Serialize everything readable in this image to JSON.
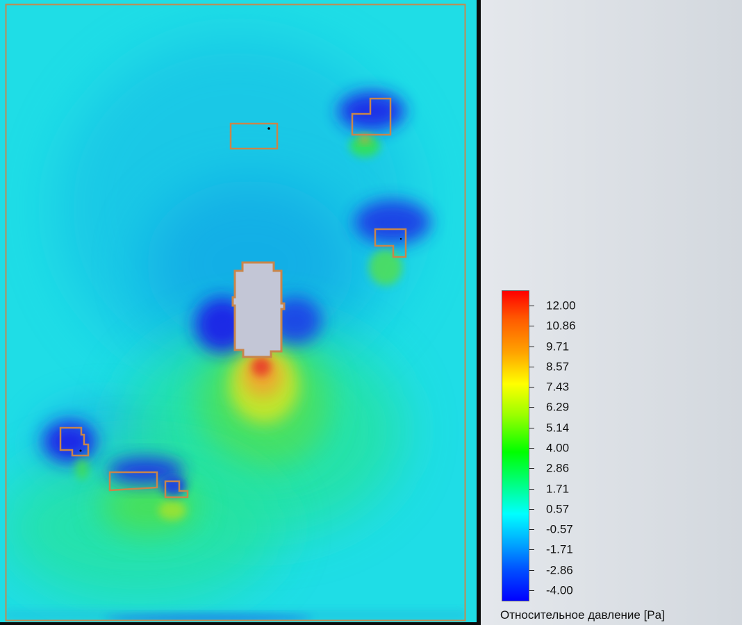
{
  "legend": {
    "title": "Относительное давление [Pa]",
    "ticks": [
      "12.00",
      "10.86",
      "9.71",
      "8.57",
      "7.43",
      "6.29",
      "5.14",
      "4.00",
      "2.86",
      "1.71",
      "0.57",
      "-0.57",
      "-1.71",
      "-2.86",
      "-4.00"
    ],
    "min": -4.0,
    "max": 12.0,
    "colormap": [
      "#0000ff",
      "#0050ff",
      "#00a2ff",
      "#00ffff",
      "#00ff7e",
      "#00ff00",
      "#9bff00",
      "#ffff00",
      "#ffa400",
      "#ff5a00",
      "#ff0000"
    ]
  },
  "colors": {
    "background_field": "#1fdde6",
    "building_outline": "#c8864b",
    "main_building_fill": "#c3c6d6",
    "domain_border": "#c08b52"
  }
}
